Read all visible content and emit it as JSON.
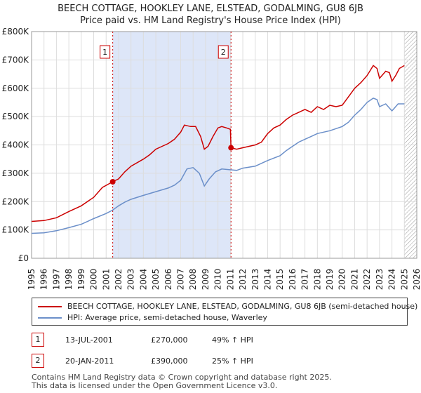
{
  "colors": {
    "red": "#cc0000",
    "blue": "#6b8fc9",
    "shade": "#dde6f8",
    "grid": "#dddddd"
  },
  "title": {
    "line1": "BEECH COTTAGE, HOOKLEY LANE, ELSTEAD, GODALMING, GU8 6JB",
    "line2": "Price paid vs. HM Land Registry's House Price Index (HPI)"
  },
  "chart_data": {
    "type": "line",
    "xlim": [
      1995,
      2026
    ],
    "ylim": [
      0,
      800000
    ],
    "x_ticks": [
      "1995",
      "1996",
      "1997",
      "1998",
      "1999",
      "2000",
      "2001",
      "2002",
      "2003",
      "2004",
      "2005",
      "2006",
      "2007",
      "2008",
      "2009",
      "2010",
      "2011",
      "2012",
      "2013",
      "2014",
      "2015",
      "2016",
      "2017",
      "2018",
      "2019",
      "2020",
      "2021",
      "2022",
      "2023",
      "2024",
      "2025",
      "2026"
    ],
    "y_ticks": [
      {
        "value": 0,
        "label": "£0"
      },
      {
        "value": 100000,
        "label": "£100K"
      },
      {
        "value": 200000,
        "label": "£200K"
      },
      {
        "value": 300000,
        "label": "£300K"
      },
      {
        "value": 400000,
        "label": "£400K"
      },
      {
        "value": 500000,
        "label": "£500K"
      },
      {
        "value": 600000,
        "label": "£600K"
      },
      {
        "value": 700000,
        "label": "£700K"
      },
      {
        "value": 800000,
        "label": "£800K"
      }
    ],
    "shaded_period": [
      2001.53,
      2011.05
    ],
    "hatched_from": 2025.0,
    "series": [
      {
        "name": "BEECH COTTAGE, HOOKLEY LANE, ELSTEAD, GODALMING, GU8 6JB (semi-detached house)",
        "color": "#cc0000",
        "points": [
          [
            1995.0,
            130000
          ],
          [
            1996.0,
            133000
          ],
          [
            1997.0,
            143000
          ],
          [
            1998.0,
            165000
          ],
          [
            1999.0,
            185000
          ],
          [
            2000.0,
            215000
          ],
          [
            2000.7,
            250000
          ],
          [
            2001.53,
            270000
          ],
          [
            2002.0,
            280000
          ],
          [
            2002.5,
            305000
          ],
          [
            2003.0,
            325000
          ],
          [
            2004.0,
            350000
          ],
          [
            2004.5,
            365000
          ],
          [
            2005.0,
            385000
          ],
          [
            2005.5,
            395000
          ],
          [
            2006.0,
            405000
          ],
          [
            2006.5,
            420000
          ],
          [
            2007.0,
            445000
          ],
          [
            2007.3,
            470000
          ],
          [
            2007.8,
            465000
          ],
          [
            2008.2,
            465000
          ],
          [
            2008.6,
            430000
          ],
          [
            2008.9,
            385000
          ],
          [
            2009.2,
            395000
          ],
          [
            2009.6,
            430000
          ],
          [
            2010.0,
            460000
          ],
          [
            2010.3,
            465000
          ],
          [
            2010.7,
            460000
          ],
          [
            2011.0,
            455000
          ],
          [
            2011.05,
            390000
          ],
          [
            2011.5,
            385000
          ],
          [
            2012.0,
            390000
          ],
          [
            2012.5,
            395000
          ],
          [
            2013.0,
            400000
          ],
          [
            2013.5,
            410000
          ],
          [
            2014.0,
            440000
          ],
          [
            2014.5,
            460000
          ],
          [
            2015.0,
            470000
          ],
          [
            2015.5,
            490000
          ],
          [
            2016.0,
            505000
          ],
          [
            2016.5,
            515000
          ],
          [
            2017.0,
            525000
          ],
          [
            2017.5,
            515000
          ],
          [
            2018.0,
            535000
          ],
          [
            2018.5,
            525000
          ],
          [
            2019.0,
            540000
          ],
          [
            2019.5,
            535000
          ],
          [
            2020.0,
            540000
          ],
          [
            2020.5,
            570000
          ],
          [
            2021.0,
            600000
          ],
          [
            2021.5,
            620000
          ],
          [
            2022.0,
            645000
          ],
          [
            2022.5,
            680000
          ],
          [
            2022.8,
            670000
          ],
          [
            2023.0,
            635000
          ],
          [
            2023.5,
            660000
          ],
          [
            2023.8,
            655000
          ],
          [
            2024.0,
            625000
          ],
          [
            2024.3,
            645000
          ],
          [
            2024.6,
            670000
          ],
          [
            2025.0,
            680000
          ]
        ]
      },
      {
        "name": "HPI: Average price, semi-detached house, Waverley",
        "color": "#6b8fc9",
        "points": [
          [
            1995.0,
            88000
          ],
          [
            1996.0,
            90000
          ],
          [
            1997.0,
            97000
          ],
          [
            1998.0,
            108000
          ],
          [
            1999.0,
            120000
          ],
          [
            2000.0,
            140000
          ],
          [
            2001.0,
            158000
          ],
          [
            2001.53,
            170000
          ],
          [
            2002.0,
            185000
          ],
          [
            2002.5,
            198000
          ],
          [
            2003.0,
            208000
          ],
          [
            2004.0,
            222000
          ],
          [
            2005.0,
            235000
          ],
          [
            2006.0,
            248000
          ],
          [
            2006.5,
            258000
          ],
          [
            2007.0,
            275000
          ],
          [
            2007.5,
            315000
          ],
          [
            2008.0,
            320000
          ],
          [
            2008.5,
            300000
          ],
          [
            2008.9,
            255000
          ],
          [
            2009.3,
            280000
          ],
          [
            2009.8,
            305000
          ],
          [
            2010.3,
            315000
          ],
          [
            2011.05,
            312000
          ],
          [
            2011.5,
            310000
          ],
          [
            2012.0,
            318000
          ],
          [
            2013.0,
            325000
          ],
          [
            2014.0,
            345000
          ],
          [
            2015.0,
            362000
          ],
          [
            2015.5,
            380000
          ],
          [
            2016.0,
            395000
          ],
          [
            2016.5,
            410000
          ],
          [
            2017.0,
            420000
          ],
          [
            2017.5,
            430000
          ],
          [
            2018.0,
            440000
          ],
          [
            2019.0,
            450000
          ],
          [
            2020.0,
            465000
          ],
          [
            2020.5,
            480000
          ],
          [
            2021.0,
            505000
          ],
          [
            2021.5,
            525000
          ],
          [
            2022.0,
            550000
          ],
          [
            2022.5,
            565000
          ],
          [
            2022.8,
            560000
          ],
          [
            2023.0,
            535000
          ],
          [
            2023.5,
            545000
          ],
          [
            2024.0,
            520000
          ],
          [
            2024.5,
            545000
          ],
          [
            2025.0,
            545000
          ]
        ]
      }
    ],
    "sales": [
      {
        "label": "1",
        "year": 2001.53,
        "price": 270000
      },
      {
        "label": "2",
        "year": 2011.05,
        "price": 390000
      }
    ]
  },
  "legend": {
    "red_label": "BEECH COTTAGE, HOOKLEY LANE, ELSTEAD, GODALMING, GU8 6JB (semi-detached house)",
    "blue_label": "HPI: Average price, semi-detached house, Waverley"
  },
  "sales_table": [
    {
      "num": "1",
      "date": "13-JUL-2001",
      "price": "£270,000",
      "hpi": "49% ↑ HPI"
    },
    {
      "num": "2",
      "date": "20-JAN-2011",
      "price": "£390,000",
      "hpi": "25% ↑ HPI"
    }
  ],
  "footer": {
    "line1": "Contains HM Land Registry data © Crown copyright and database right 2025.",
    "line2": "This data is licensed under the Open Government Licence v3.0."
  }
}
